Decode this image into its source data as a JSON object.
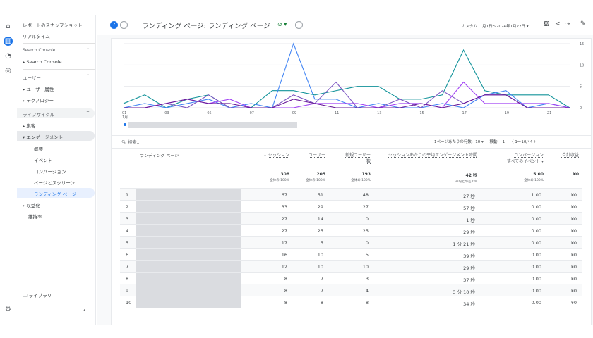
{
  "rail": {
    "icons": [
      "home-icon",
      "reports-icon",
      "explore-icon",
      "advertising-icon"
    ],
    "settings_icon": "gear-icon"
  },
  "nav": {
    "snapshot": "レポートのスナップショット",
    "realtime": "リアルタイム",
    "sc_section": "Search Console",
    "sc_item": "Search Console",
    "user_section": "ユーザー",
    "user_attr": "ユーザー属性",
    "tech": "テクノロジー",
    "life_section": "ライフサイクル",
    "acq": "集客",
    "eng": "エンゲージメント",
    "eng_items": [
      "概要",
      "イベント",
      "コンバージョン",
      "ページとスクリーン",
      "ランディング ページ"
    ],
    "monet": "収益化",
    "retention": "維持率",
    "library": "ライブラリ"
  },
  "header": {
    "title": "ランディング ページ: ランディング ページ",
    "date_prefix": "カスタム",
    "date_range": "1月1日～2024年1月22日"
  },
  "chart_data": {
    "type": "line",
    "x": [
      "01",
      "02",
      "03",
      "04",
      "05",
      "06",
      "07",
      "08",
      "09",
      "10",
      "11",
      "12",
      "13",
      "14",
      "15",
      "16",
      "17",
      "18",
      "19",
      "20",
      "21",
      "22"
    ],
    "x_ticks": [
      "01",
      "03",
      "05",
      "07",
      "09",
      "11",
      "13",
      "15",
      "17",
      "19",
      "21"
    ],
    "x_month": "1月",
    "y_ticks": [
      "15",
      "10",
      "5",
      "0"
    ],
    "ylim": [
      0,
      15
    ],
    "series": [
      {
        "color": "#12939a",
        "values": [
          1,
          3,
          0,
          2,
          3,
          0,
          0,
          4,
          4,
          3,
          4,
          5,
          5,
          2,
          2,
          3,
          13.5,
          4,
          3,
          3,
          3,
          0
        ]
      },
      {
        "color": "#4285f4",
        "values": [
          0,
          1,
          0,
          1,
          2,
          0,
          1,
          0,
          15,
          2,
          2,
          0,
          1,
          0,
          0,
          1,
          0,
          3,
          4,
          0,
          1,
          0
        ]
      },
      {
        "color": "#7e57c2",
        "values": [
          0,
          0,
          1,
          0,
          3,
          0,
          0,
          0,
          3,
          1,
          6,
          0,
          0,
          2,
          0,
          4,
          1,
          3,
          3,
          0,
          0,
          0
        ]
      },
      {
        "color": "#a142f4",
        "values": [
          0,
          0,
          1,
          2,
          1,
          2,
          0,
          0,
          0,
          1,
          1,
          1,
          0,
          1,
          1,
          0,
          6,
          1,
          1,
          1,
          1,
          0
        ]
      },
      {
        "color": "#6a1b9a",
        "values": [
          0,
          0,
          1,
          2,
          1,
          1,
          0,
          0,
          2,
          1,
          0,
          0,
          0,
          0,
          1,
          0,
          1,
          3,
          3,
          0,
          0,
          0
        ]
      }
    ]
  },
  "table": {
    "search_placeholder": "検索...",
    "rows_per_page_label": "1ページあたりの行数:",
    "rows_per_page": "10",
    "goto_label": "移動:",
    "goto": "1",
    "pager": "1～10/44",
    "dim_header": "ランディング ページ",
    "columns": [
      {
        "label": "セッション",
        "total": "308",
        "sub": "全体の 100%"
      },
      {
        "label": "ユーザー",
        "total": "205",
        "sub": "全体の 100%"
      },
      {
        "label": "新規ユーザー数",
        "total": "193",
        "sub": "全体の 100%"
      },
      {
        "label": "セッションあたりの平均エンゲージメント時間",
        "total": "42 秒",
        "sub": "平均との差 0%"
      },
      {
        "label": "コンバージョン",
        "label2": "すべてのイベント",
        "total": "5.00",
        "sub": "全体の 100%"
      },
      {
        "label": "合計収益",
        "total": "¥0",
        "sub": ""
      }
    ],
    "rows": [
      [
        "1",
        "67",
        "51",
        "48",
        "27 秒",
        "1.00",
        "¥0"
      ],
      [
        "2",
        "33",
        "29",
        "27",
        "57 秒",
        "0.00",
        "¥0"
      ],
      [
        "3",
        "27",
        "14",
        "0",
        "1 秒",
        "0.00",
        "¥0"
      ],
      [
        "4",
        "27",
        "25",
        "25",
        "29 秒",
        "0.00",
        "¥0"
      ],
      [
        "5",
        "17",
        "5",
        "0",
        "1 分 21 秒",
        "0.00",
        "¥0"
      ],
      [
        "6",
        "16",
        "10",
        "5",
        "39 秒",
        "0.00",
        "¥0"
      ],
      [
        "7",
        "12",
        "10",
        "10",
        "29 秒",
        "0.00",
        "¥0"
      ],
      [
        "8",
        "8",
        "7",
        "3",
        "37 秒",
        "0.00",
        "¥0"
      ],
      [
        "9",
        "8",
        "7",
        "4",
        "3 分 10 秒",
        "0.00",
        "¥0"
      ],
      [
        "10",
        "8",
        "8",
        "8",
        "34 秒",
        "0.00",
        "¥0"
      ]
    ]
  }
}
